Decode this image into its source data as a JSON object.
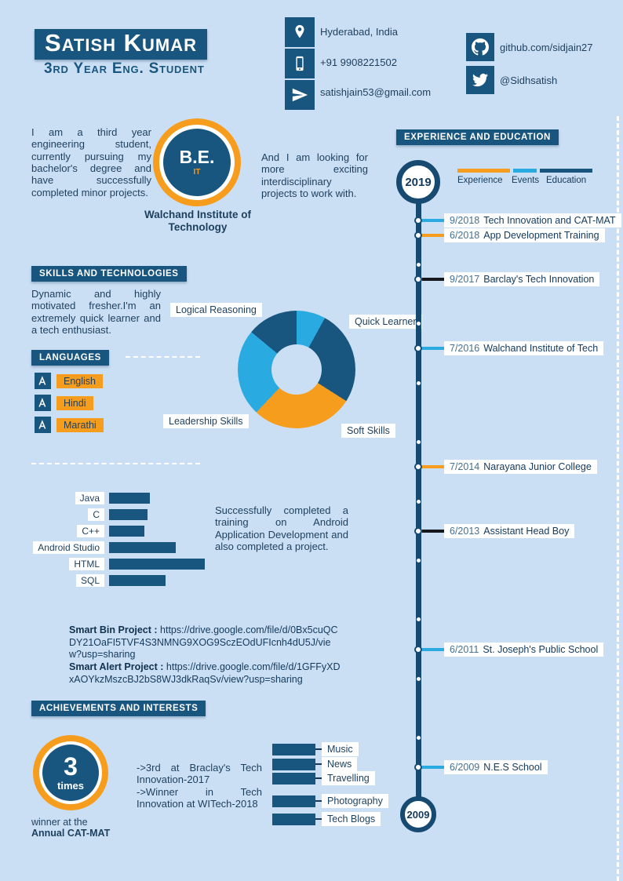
{
  "theme": {
    "bg": "#cbdff4",
    "dark_blue": "#19567f",
    "navy": "#13395c",
    "orange": "#f79d1e",
    "light_blue": "#29abe2",
    "black_tick": "#15191e"
  },
  "header": {
    "name": "Satish Kumar",
    "subtitle": "3rd Year Eng. Student",
    "contacts": [
      {
        "icon": "location-pin",
        "text": "Hyderabad, India"
      },
      {
        "icon": "mobile-phone",
        "text": "+91 9908221502"
      },
      {
        "icon": "paper-plane",
        "text": "satishjain53@gmail.com"
      }
    ],
    "social": [
      {
        "icon": "github",
        "text": "github.com/sidjain27"
      },
      {
        "icon": "twitter",
        "text": "@Sidhsatish"
      }
    ]
  },
  "about": {
    "intro": "I am a third year engineering student, currently pursuing my bachelor's degree and have successfully completed minor projects.",
    "degree": "B.E.",
    "branch": "IT",
    "institute": "Walchand Institute of Technology",
    "outro": "And I am looking for more exciting interdisciplinary projects to work with."
  },
  "skills": {
    "heading": "SKILLS AND TECHNOLOGIES",
    "description": "Dynamic and highly motivated fresher.I'm an extremely quick learner and a tech enthusiast."
  },
  "languages": {
    "heading": "LANGUAGES",
    "items": [
      {
        "label": "English"
      },
      {
        "label": "Hindi"
      },
      {
        "label": "Marathi"
      }
    ]
  },
  "training_note": "Successfully completed a training on Android Application Development and also completed a project.",
  "projects": [
    {
      "label": "Smart Bin Project :",
      "url": "https://drive.google.com/file/d/0Bx5cuQCDY21OaFI5TVF4S3NMNG9XOG9SczEOdUFIcnh4dU5J/view?usp=sharing"
    },
    {
      "label": "Smart Alert Project :",
      "url": "https://drive.google.com/file/d/1GFFyXDxAOYkzMszcBJ2bS8WJ3dkRaqSv/view?usp=sharing"
    }
  ],
  "achievements": {
    "heading": "ACHIEVEMENTS AND INTERESTS",
    "badge_value": "3",
    "badge_unit": "times",
    "caption_line1": "winner at the",
    "caption_line2": "Annual CAT-MAT",
    "bullets": [
      "->3rd at Braclay's Tech Innovation-2017",
      "->Winner in Tech Innovation at WITech-2018"
    ]
  },
  "timeline": {
    "heading": "EXPERIENCE AND EDUCATION",
    "top_year": "2019",
    "bottom_year": "2009",
    "legend": [
      {
        "label": "Experience",
        "color": "#f79d1e"
      },
      {
        "label": "Events",
        "color": "#29abe2"
      },
      {
        "label": "Education",
        "color": "#19567f"
      }
    ],
    "items": [
      {
        "date": "9/2018",
        "title": "Tech Innovation and CAT-MAT",
        "color": "#29abe2"
      },
      {
        "date": "6/2018",
        "title": "App Development Training",
        "color": "#f79d1e"
      },
      {
        "date": "9/2017",
        "title": "Barclay's Tech Innovation",
        "color": "#15191e"
      },
      {
        "date": "7/2016",
        "title": "Walchand Institute of Tech",
        "color": "#29abe2"
      },
      {
        "date": "7/2014",
        "title": "Narayana Junior College",
        "color": "#f79d1e"
      },
      {
        "date": "6/2013",
        "title": "Assistant Head Boy",
        "color": "#15191e"
      },
      {
        "date": "6/2011",
        "title": "St. Joseph's Public School",
        "color": "#29abe2"
      },
      {
        "date": "6/2009",
        "title": "N.E.S School",
        "color": "#29abe2"
      }
    ]
  },
  "chart_data": [
    {
      "type": "pie",
      "title": "Soft skills donut",
      "donut": true,
      "labels": [
        "Logical Reasoning",
        "Quick Learner",
        "Soft Skills",
        "Leadership Skills"
      ],
      "segments": [
        {
          "label": "Quick Learner",
          "value": 8,
          "color": "#29abe2"
        },
        {
          "label": "Logical Reasoning",
          "value": 26,
          "color": "#19567f"
        },
        {
          "label": "Soft Skills",
          "value": 28,
          "color": "#f79d1e"
        },
        {
          "label": "Leadership Skills",
          "value": 24,
          "color": "#29abe2"
        },
        {
          "label": "",
          "value": 14,
          "color": "#19567f"
        }
      ]
    },
    {
      "type": "bar",
      "title": "Technologies proficiency",
      "categories": [
        "Java",
        "C",
        "C++",
        "Android Studio",
        "HTML",
        "SQL"
      ],
      "values": [
        43,
        40,
        37,
        70,
        100,
        59
      ],
      "xlim": [
        0,
        100
      ],
      "orientation": "horizontal"
    },
    {
      "type": "bar",
      "title": "Interests",
      "categories": [
        "Music",
        "News",
        "Travelling",
        "Photography",
        "Tech Blogs"
      ],
      "values": [
        100,
        100,
        100,
        100,
        100
      ],
      "orientation": "horizontal"
    }
  ]
}
